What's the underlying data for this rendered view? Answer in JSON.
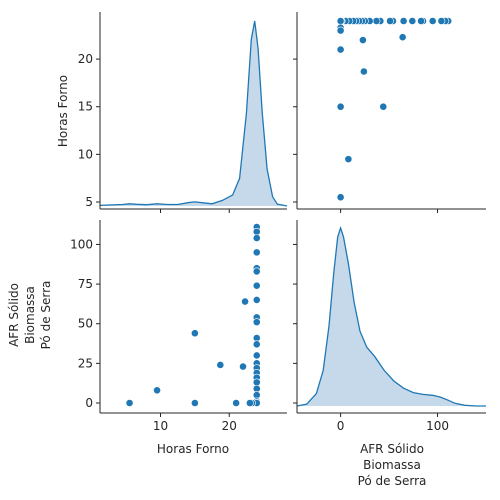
{
  "chart_data": {
    "type": "pairplot",
    "variables": [
      "Horas Forno",
      "AFR Sólido\nBiomassa\nPó de Serra"
    ],
    "color": "#1f77b4",
    "diag_fill": "#c6d9ea",
    "axes": {
      "horas": {
        "lim": [
          1.2,
          28.4
        ],
        "ticks": [
          10,
          20
        ],
        "ticks_y": [
          5,
          10,
          15,
          20
        ]
      },
      "afr": {
        "lim": [
          -45,
          150
        ],
        "ticks": [
          0,
          100
        ],
        "ticks_y": [
          0,
          25,
          50,
          75,
          100
        ]
      }
    },
    "points": [
      {
        "x": 24,
        "y": 111
      },
      {
        "x": 24,
        "y": 108
      },
      {
        "x": 24,
        "y": 104
      },
      {
        "x": 24,
        "y": 95
      },
      {
        "x": 24,
        "y": 85
      },
      {
        "x": 24,
        "y": 83
      },
      {
        "x": 24,
        "y": 74
      },
      {
        "x": 24,
        "y": 65
      },
      {
        "x": 24,
        "y": 54
      },
      {
        "x": 24,
        "y": 51
      },
      {
        "x": 24,
        "y": 41
      },
      {
        "x": 24,
        "y": 37
      },
      {
        "x": 24,
        "y": 30
      },
      {
        "x": 24,
        "y": 25
      },
      {
        "x": 24,
        "y": 22
      },
      {
        "x": 24,
        "y": 19
      },
      {
        "x": 24,
        "y": 16
      },
      {
        "x": 24,
        "y": 13
      },
      {
        "x": 24,
        "y": 9
      },
      {
        "x": 24,
        "y": 5
      },
      {
        "x": 24,
        "y": 1
      },
      {
        "x": 24,
        "y": 0
      },
      {
        "x": 24,
        "y": 0
      },
      {
        "x": 24,
        "y": 0
      },
      {
        "x": 23.3,
        "y": 0
      },
      {
        "x": 23,
        "y": 0
      },
      {
        "x": 22.3,
        "y": 64
      },
      {
        "x": 22,
        "y": 23
      },
      {
        "x": 21,
        "y": 0
      },
      {
        "x": 18.7,
        "y": 24
      },
      {
        "x": 15,
        "y": 44
      },
      {
        "x": 15,
        "y": 0
      },
      {
        "x": 9.5,
        "y": 8
      },
      {
        "x": 5.5,
        "y": 0
      }
    ],
    "kde_horas": [
      [
        1.2,
        0.003
      ],
      [
        3,
        0.006
      ],
      [
        4.5,
        0.008
      ],
      [
        5.5,
        0.012
      ],
      [
        6.5,
        0.009
      ],
      [
        8,
        0.007
      ],
      [
        9.5,
        0.012
      ],
      [
        11,
        0.008
      ],
      [
        12.5,
        0.008
      ],
      [
        14,
        0.018
      ],
      [
        15,
        0.022
      ],
      [
        16,
        0.018
      ],
      [
        17.5,
        0.012
      ],
      [
        19,
        0.03
      ],
      [
        20.5,
        0.06
      ],
      [
        21.5,
        0.15
      ],
      [
        22.5,
        0.5
      ],
      [
        23.2,
        0.9
      ],
      [
        23.7,
        1.0
      ],
      [
        24.2,
        0.85
      ],
      [
        24.8,
        0.5
      ],
      [
        25.5,
        0.2
      ],
      [
        26.3,
        0.05
      ],
      [
        27,
        0.01
      ],
      [
        28.4,
        0.0
      ]
    ],
    "kde_afr": [
      [
        -45,
        0.0
      ],
      [
        -35,
        0.01
      ],
      [
        -25,
        0.07
      ],
      [
        -18,
        0.2
      ],
      [
        -12,
        0.45
      ],
      [
        -7,
        0.75
      ],
      [
        -3,
        0.95
      ],
      [
        0,
        1.0
      ],
      [
        3,
        0.95
      ],
      [
        8,
        0.8
      ],
      [
        14,
        0.58
      ],
      [
        20,
        0.42
      ],
      [
        27,
        0.33
      ],
      [
        35,
        0.28
      ],
      [
        45,
        0.2
      ],
      [
        55,
        0.14
      ],
      [
        65,
        0.1
      ],
      [
        75,
        0.075
      ],
      [
        85,
        0.065
      ],
      [
        95,
        0.06
      ],
      [
        103,
        0.05
      ],
      [
        110,
        0.035
      ],
      [
        118,
        0.015
      ],
      [
        128,
        0.004
      ],
      [
        140,
        0.0
      ],
      [
        150,
        0.0
      ]
    ]
  }
}
